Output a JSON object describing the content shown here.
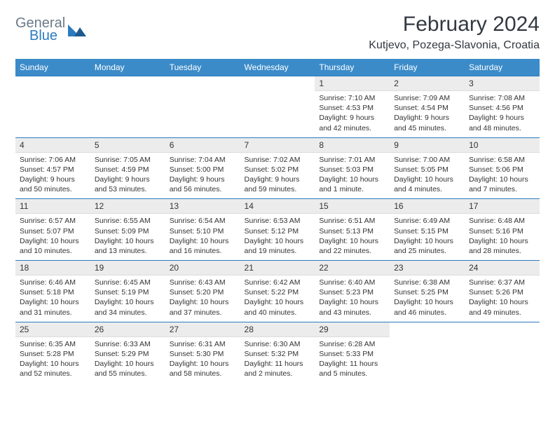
{
  "brand": {
    "top": "General",
    "bottom": "Blue"
  },
  "title": "February 2024",
  "location": "Kutjevo, Pozega-Slavonia, Croatia",
  "colors": {
    "header_bg": "#3b8bc9",
    "header_text": "#ffffff",
    "rule": "#2b7bbf",
    "daynum_bg": "#ececec",
    "body_text": "#333333",
    "brand_gray": "#6b7a89",
    "brand_blue": "#2b7bbf",
    "page_bg": "#ffffff"
  },
  "weekdays": [
    "Sunday",
    "Monday",
    "Tuesday",
    "Wednesday",
    "Thursday",
    "Friday",
    "Saturday"
  ],
  "weeks": [
    [
      null,
      null,
      null,
      null,
      {
        "n": "1",
        "sr": "7:10 AM",
        "ss": "4:53 PM",
        "dl": "9 hours and 42 minutes."
      },
      {
        "n": "2",
        "sr": "7:09 AM",
        "ss": "4:54 PM",
        "dl": "9 hours and 45 minutes."
      },
      {
        "n": "3",
        "sr": "7:08 AM",
        "ss": "4:56 PM",
        "dl": "9 hours and 48 minutes."
      }
    ],
    [
      {
        "n": "4",
        "sr": "7:06 AM",
        "ss": "4:57 PM",
        "dl": "9 hours and 50 minutes."
      },
      {
        "n": "5",
        "sr": "7:05 AM",
        "ss": "4:59 PM",
        "dl": "9 hours and 53 minutes."
      },
      {
        "n": "6",
        "sr": "7:04 AM",
        "ss": "5:00 PM",
        "dl": "9 hours and 56 minutes."
      },
      {
        "n": "7",
        "sr": "7:02 AM",
        "ss": "5:02 PM",
        "dl": "9 hours and 59 minutes."
      },
      {
        "n": "8",
        "sr": "7:01 AM",
        "ss": "5:03 PM",
        "dl": "10 hours and 1 minute."
      },
      {
        "n": "9",
        "sr": "7:00 AM",
        "ss": "5:05 PM",
        "dl": "10 hours and 4 minutes."
      },
      {
        "n": "10",
        "sr": "6:58 AM",
        "ss": "5:06 PM",
        "dl": "10 hours and 7 minutes."
      }
    ],
    [
      {
        "n": "11",
        "sr": "6:57 AM",
        "ss": "5:07 PM",
        "dl": "10 hours and 10 minutes."
      },
      {
        "n": "12",
        "sr": "6:55 AM",
        "ss": "5:09 PM",
        "dl": "10 hours and 13 minutes."
      },
      {
        "n": "13",
        "sr": "6:54 AM",
        "ss": "5:10 PM",
        "dl": "10 hours and 16 minutes."
      },
      {
        "n": "14",
        "sr": "6:53 AM",
        "ss": "5:12 PM",
        "dl": "10 hours and 19 minutes."
      },
      {
        "n": "15",
        "sr": "6:51 AM",
        "ss": "5:13 PM",
        "dl": "10 hours and 22 minutes."
      },
      {
        "n": "16",
        "sr": "6:49 AM",
        "ss": "5:15 PM",
        "dl": "10 hours and 25 minutes."
      },
      {
        "n": "17",
        "sr": "6:48 AM",
        "ss": "5:16 PM",
        "dl": "10 hours and 28 minutes."
      }
    ],
    [
      {
        "n": "18",
        "sr": "6:46 AM",
        "ss": "5:18 PM",
        "dl": "10 hours and 31 minutes."
      },
      {
        "n": "19",
        "sr": "6:45 AM",
        "ss": "5:19 PM",
        "dl": "10 hours and 34 minutes."
      },
      {
        "n": "20",
        "sr": "6:43 AM",
        "ss": "5:20 PM",
        "dl": "10 hours and 37 minutes."
      },
      {
        "n": "21",
        "sr": "6:42 AM",
        "ss": "5:22 PM",
        "dl": "10 hours and 40 minutes."
      },
      {
        "n": "22",
        "sr": "6:40 AM",
        "ss": "5:23 PM",
        "dl": "10 hours and 43 minutes."
      },
      {
        "n": "23",
        "sr": "6:38 AM",
        "ss": "5:25 PM",
        "dl": "10 hours and 46 minutes."
      },
      {
        "n": "24",
        "sr": "6:37 AM",
        "ss": "5:26 PM",
        "dl": "10 hours and 49 minutes."
      }
    ],
    [
      {
        "n": "25",
        "sr": "6:35 AM",
        "ss": "5:28 PM",
        "dl": "10 hours and 52 minutes."
      },
      {
        "n": "26",
        "sr": "6:33 AM",
        "ss": "5:29 PM",
        "dl": "10 hours and 55 minutes."
      },
      {
        "n": "27",
        "sr": "6:31 AM",
        "ss": "5:30 PM",
        "dl": "10 hours and 58 minutes."
      },
      {
        "n": "28",
        "sr": "6:30 AM",
        "ss": "5:32 PM",
        "dl": "11 hours and 2 minutes."
      },
      {
        "n": "29",
        "sr": "6:28 AM",
        "ss": "5:33 PM",
        "dl": "11 hours and 5 minutes."
      },
      null,
      null
    ]
  ],
  "labels": {
    "sunrise": "Sunrise:",
    "sunset": "Sunset:",
    "daylight": "Daylight:"
  }
}
